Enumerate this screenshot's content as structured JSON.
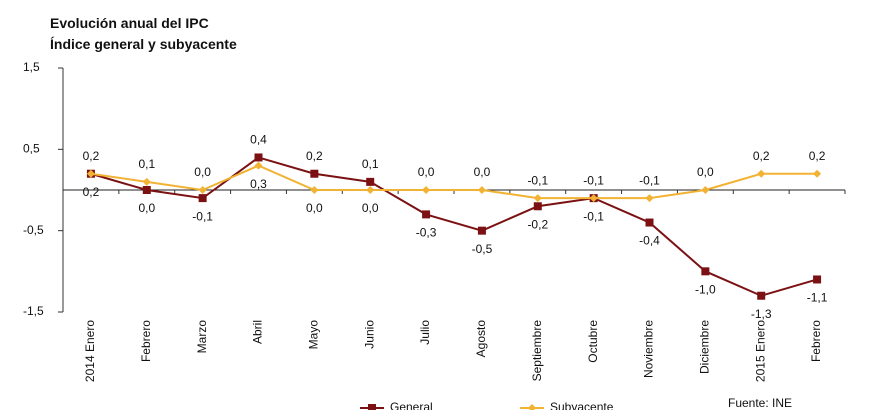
{
  "chart_data": {
    "type": "line",
    "title": "Evolución anual del IPC",
    "subtitle": "Índice general y subyacente",
    "categories": [
      "2014 Enero",
      "Febrero",
      "Marzo",
      "Abril",
      "Mayo",
      "Junio",
      "Julio",
      "Agosto",
      "Septiembre",
      "Octubre",
      "Noviembre",
      "Diciembre",
      "2015 Enero",
      "Febrero"
    ],
    "series": [
      {
        "name": "General",
        "color": "#7b1113",
        "marker": "square",
        "values": [
          0.2,
          0.0,
          -0.1,
          0.4,
          0.2,
          0.1,
          -0.3,
          -0.5,
          -0.2,
          -0.1,
          -0.4,
          -1.0,
          -1.3,
          -1.1
        ],
        "value_labels": [
          "0,2",
          "0,0",
          "-0,1",
          "0,4",
          "0,2",
          "0,1",
          "-0,3",
          "-0,5",
          "-0,2",
          "-0,1",
          "-0,4",
          "-1,0",
          "-1,3",
          "-1,1"
        ]
      },
      {
        "name": "Subyacente",
        "color": "#f2b233",
        "marker": "diamond",
        "values": [
          0.2,
          0.1,
          0.0,
          0.3,
          0.0,
          0.0,
          0.0,
          0.0,
          -0.1,
          -0.1,
          -0.1,
          0.0,
          0.2,
          0.2
        ],
        "value_labels": [
          "0,2",
          "0,1",
          "0,0",
          "0,3",
          "0,0",
          "0,0",
          "0,0",
          "0,0",
          "-0,1",
          "-0,1",
          "-0,1",
          "0,0",
          "0,2",
          "0,2"
        ]
      }
    ],
    "ylim": [
      -1.5,
      1.5
    ],
    "yticks": [
      {
        "value": -1.5,
        "label": "-1,5"
      },
      {
        "value": -0.5,
        "label": "-0,5"
      },
      {
        "value": 0.5,
        "label": "0,5"
      },
      {
        "value": 1.5,
        "label": "1,5"
      }
    ],
    "grid": false,
    "source": "Fuente: INE"
  }
}
